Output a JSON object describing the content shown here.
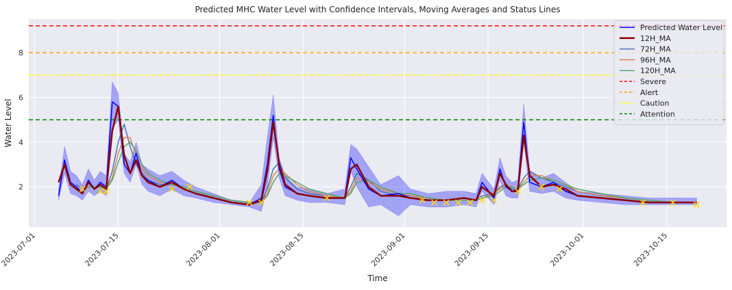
{
  "chart_data": {
    "type": "line",
    "title": "Predicted MHC Water Level with Confidence Intervals, Moving Averages and Status Lines",
    "xlabel": "Time",
    "ylabel": "Water Level",
    "xlim": [
      "2023-06-30",
      "2023-10-25"
    ],
    "ylim": [
      0.2,
      9.5
    ],
    "x_ticks": [
      "2023-07-01",
      "2023-07-15",
      "2023-08-01",
      "2023-08-15",
      "2023-09-01",
      "2023-09-15",
      "2023-10-01",
      "2023-10-15"
    ],
    "y_ticks": [
      2,
      4,
      6,
      8
    ],
    "grid": true,
    "legend_position": "top-right",
    "thresholds": [
      {
        "name": "Severe",
        "value": 9.2,
        "color": "#ff0000"
      },
      {
        "name": "Alert",
        "value": 8.0,
        "color": "#ffa500"
      },
      {
        "name": "Caution",
        "value": 7.0,
        "color": "#ffff00"
      },
      {
        "name": "Attention",
        "value": 5.0,
        "color": "#008000"
      }
    ],
    "x": [
      "2023-07-05",
      "2023-07-06",
      "2023-07-07",
      "2023-07-08",
      "2023-07-09",
      "2023-07-10",
      "2023-07-11",
      "2023-07-12",
      "2023-07-13",
      "2023-07-14",
      "2023-07-15",
      "2023-07-16",
      "2023-07-17",
      "2023-07-18",
      "2023-07-19",
      "2023-07-20",
      "2023-07-22",
      "2023-07-24",
      "2023-07-26",
      "2023-07-28",
      "2023-07-31",
      "2023-08-03",
      "2023-08-06",
      "2023-08-08",
      "2023-08-09",
      "2023-08-10",
      "2023-08-11",
      "2023-08-12",
      "2023-08-14",
      "2023-08-16",
      "2023-08-19",
      "2023-08-22",
      "2023-08-23",
      "2023-08-24",
      "2023-08-26",
      "2023-08-28",
      "2023-08-31",
      "2023-09-02",
      "2023-09-05",
      "2023-09-08",
      "2023-09-11",
      "2023-09-13",
      "2023-09-14",
      "2023-09-16",
      "2023-09-17",
      "2023-09-18",
      "2023-09-19",
      "2023-09-20",
      "2023-09-21",
      "2023-09-22",
      "2023-09-24",
      "2023-09-26",
      "2023-09-28",
      "2023-09-30",
      "2023-10-04",
      "2023-10-08",
      "2023-10-12",
      "2023-10-16",
      "2023-10-20"
    ],
    "series": [
      {
        "name": "Predicted Water Level",
        "color": "#0000ff",
        "width": 1.5,
        "values": [
          1.6,
          3.2,
          2.2,
          2.0,
          1.7,
          2.3,
          1.9,
          2.2,
          2.0,
          5.8,
          5.6,
          3.0,
          2.6,
          3.5,
          2.5,
          2.3,
          2.0,
          2.3,
          1.9,
          1.7,
          1.5,
          1.3,
          1.2,
          1.5,
          3.0,
          5.2,
          2.8,
          2.0,
          1.7,
          1.6,
          1.5,
          1.5,
          3.3,
          2.8,
          1.9,
          1.6,
          1.7,
          1.5,
          1.4,
          1.4,
          1.5,
          1.4,
          2.2,
          1.5,
          2.8,
          2.0,
          1.8,
          1.9,
          4.9,
          2.2,
          2.0,
          2.2,
          1.8,
          1.6,
          1.5,
          1.4,
          1.3,
          1.3,
          1.3
        ]
      },
      {
        "name": "12H_MA",
        "color": "#8b0000",
        "width": 2.5,
        "values": [
          2.2,
          3.0,
          2.1,
          1.9,
          1.7,
          2.2,
          1.9,
          2.1,
          1.9,
          4.5,
          5.6,
          3.4,
          2.6,
          3.2,
          2.5,
          2.2,
          2.0,
          2.2,
          1.9,
          1.7,
          1.5,
          1.3,
          1.2,
          1.4,
          2.7,
          4.9,
          3.0,
          2.1,
          1.7,
          1.6,
          1.5,
          1.5,
          2.8,
          3.0,
          2.0,
          1.6,
          1.6,
          1.5,
          1.4,
          1.4,
          1.5,
          1.4,
          2.0,
          1.6,
          2.6,
          2.1,
          1.8,
          1.8,
          4.3,
          2.5,
          2.0,
          2.1,
          1.9,
          1.6,
          1.5,
          1.4,
          1.3,
          1.3,
          1.3
        ]
      },
      {
        "name": "72H_MA",
        "color": "#4c72b0",
        "width": 1.5,
        "values": [
          null,
          null,
          null,
          2.1,
          1.9,
          2.0,
          2.0,
          2.0,
          1.9,
          2.7,
          4.0,
          4.8,
          3.8,
          3.0,
          2.6,
          2.3,
          2.1,
          2.1,
          2.0,
          1.8,
          1.6,
          1.4,
          1.3,
          1.3,
          1.9,
          2.8,
          3.1,
          2.4,
          1.9,
          1.7,
          1.6,
          1.5,
          2.0,
          2.6,
          2.3,
          1.8,
          1.6,
          1.6,
          1.5,
          1.4,
          1.4,
          1.4,
          1.6,
          1.7,
          2.0,
          2.1,
          1.9,
          1.9,
          2.4,
          2.7,
          2.4,
          2.2,
          2.0,
          1.8,
          1.6,
          1.5,
          1.4,
          1.3,
          1.3
        ]
      },
      {
        "name": "96H_MA",
        "color": "#dd8452",
        "width": 1.5,
        "values": [
          null,
          null,
          null,
          null,
          2.0,
          2.0,
          2.0,
          2.0,
          1.9,
          2.4,
          3.5,
          4.2,
          4.2,
          3.4,
          2.8,
          2.5,
          2.2,
          2.1,
          2.0,
          1.8,
          1.6,
          1.4,
          1.3,
          1.3,
          1.7,
          2.5,
          2.8,
          2.6,
          2.1,
          1.8,
          1.6,
          1.5,
          1.8,
          2.4,
          2.2,
          1.9,
          1.7,
          1.6,
          1.5,
          1.4,
          1.4,
          1.4,
          1.5,
          1.7,
          1.9,
          2.1,
          2.0,
          1.9,
          2.2,
          2.5,
          2.5,
          2.3,
          2.1,
          1.8,
          1.6,
          1.5,
          1.4,
          1.3,
          1.3
        ]
      },
      {
        "name": "120H_MA",
        "color": "#55a868",
        "width": 1.5,
        "values": [
          null,
          null,
          null,
          null,
          null,
          2.0,
          2.0,
          2.0,
          1.9,
          2.3,
          3.1,
          3.8,
          4.0,
          3.6,
          3.0,
          2.6,
          2.3,
          2.1,
          2.0,
          1.8,
          1.6,
          1.4,
          1.3,
          1.3,
          1.6,
          2.2,
          2.6,
          2.5,
          2.2,
          1.9,
          1.7,
          1.5,
          1.7,
          2.2,
          2.3,
          2.0,
          1.7,
          1.7,
          1.5,
          1.4,
          1.4,
          1.4,
          1.5,
          1.6,
          1.8,
          2.0,
          2.0,
          1.9,
          2.1,
          2.3,
          2.4,
          2.3,
          2.1,
          1.9,
          1.7,
          1.5,
          1.4,
          1.3,
          1.3
        ]
      }
    ],
    "confidence_interval": {
      "color": "#0000ff",
      "lower": [
        1.4,
        2.6,
        1.7,
        1.6,
        1.4,
        1.8,
        1.6,
        1.8,
        1.6,
        4.6,
        5.0,
        2.6,
        2.2,
        3.0,
        2.1,
        1.8,
        1.6,
        1.9,
        1.6,
        1.5,
        1.3,
        1.2,
        1.1,
        0.9,
        2.0,
        4.2,
        2.4,
        1.6,
        1.4,
        1.3,
        1.3,
        1.2,
        2.7,
        2.0,
        1.1,
        1.2,
        0.7,
        1.2,
        1.1,
        1.1,
        1.2,
        1.1,
        1.8,
        1.2,
        2.3,
        1.6,
        1.5,
        1.5,
        4.0,
        1.8,
        1.7,
        1.8,
        1.5,
        1.4,
        1.3,
        1.2,
        1.2,
        1.2,
        1.2
      ],
      "upper": [
        1.9,
        3.8,
        2.7,
        2.5,
        2.1,
        2.8,
        2.3,
        2.7,
        2.5,
        6.7,
        6.2,
        3.5,
        3.1,
        4.0,
        3.0,
        2.8,
        2.5,
        2.7,
        2.3,
        2.0,
        1.7,
        1.4,
        1.3,
        2.1,
        4.2,
        6.1,
        3.3,
        2.5,
        2.0,
        1.9,
        1.7,
        1.9,
        3.9,
        3.7,
        2.9,
        2.1,
        2.5,
        1.9,
        1.7,
        1.8,
        1.8,
        1.7,
        2.6,
        1.9,
        3.3,
        2.5,
        2.2,
        2.3,
        5.7,
        2.7,
        2.4,
        2.6,
        2.2,
        1.8,
        1.7,
        1.6,
        1.5,
        1.5,
        1.5
      ]
    },
    "markers": {
      "color": "#ffd700",
      "symbol": "x",
      "x": [
        "2023-07-09",
        "2023-07-12",
        "2023-07-13",
        "2023-07-24",
        "2023-07-27",
        "2023-08-06",
        "2023-08-08",
        "2023-08-19",
        "2023-09-04",
        "2023-09-06",
        "2023-09-08",
        "2023-09-10",
        "2023-09-12",
        "2023-09-14",
        "2023-09-16",
        "2023-09-20",
        "2023-09-24",
        "2023-09-27",
        "2023-10-11",
        "2023-10-16",
        "2023-10-20"
      ],
      "y": [
        1.9,
        1.8,
        1.8,
        1.9,
        2.0,
        1.3,
        1.3,
        1.5,
        1.4,
        1.3,
        1.3,
        1.3,
        1.3,
        1.4,
        1.4,
        1.8,
        2.0,
        1.9,
        1.3,
        1.3,
        1.2
      ]
    }
  }
}
